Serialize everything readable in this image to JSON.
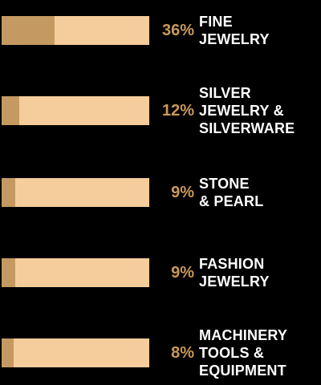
{
  "chart_data": {
    "type": "bar",
    "orientation": "horizontal",
    "categories": [
      "FINE\nJEWELRY",
      "SILVER\nJEWELRY &\nSILVERWARE",
      "STONE\n& PEARL",
      "FASHION\nJEWELRY",
      "MACHINERY\nTOOLS &\nEQUIPMENT"
    ],
    "values": [
      36,
      12,
      9,
      9,
      8
    ],
    "value_labels": [
      "36%",
      "12%",
      "9%",
      "9%",
      "8%"
    ],
    "xlim": [
      0,
      100
    ],
    "color": "#c49a62",
    "track_color": "#f5cc9c",
    "label_color": "#ffffff",
    "value_label_color": "#c9995a"
  }
}
